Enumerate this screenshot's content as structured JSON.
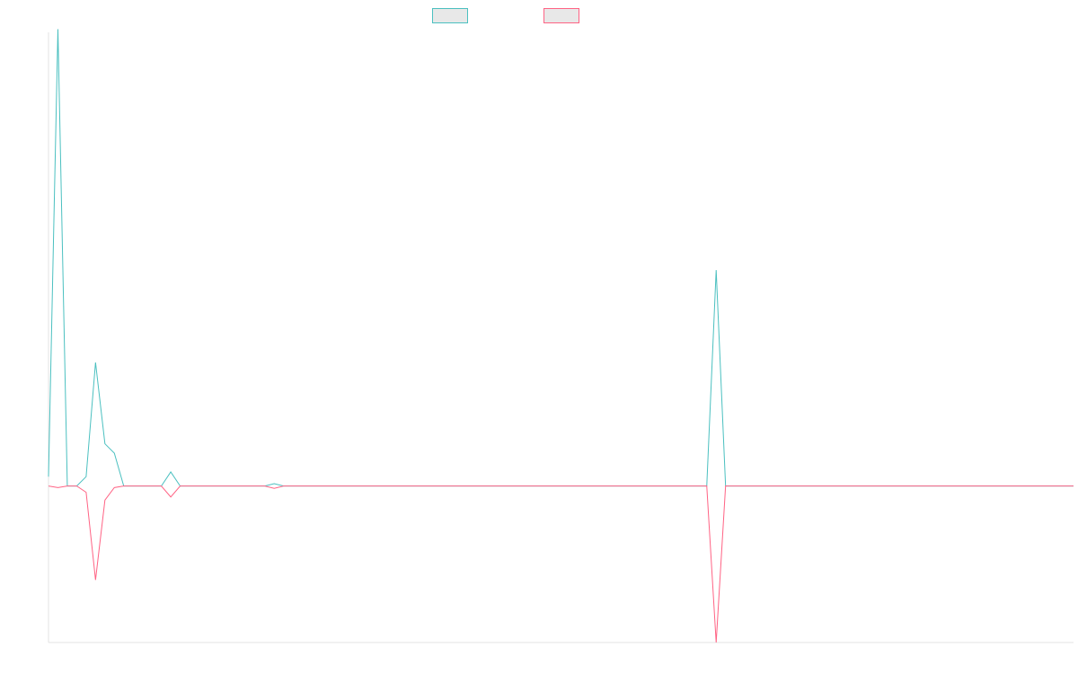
{
  "chart_data": {
    "type": "line",
    "title": "",
    "xlabel": "",
    "ylabel": "",
    "x_count": 110,
    "ylim": [
      -1,
      2.9
    ],
    "grid": false,
    "legend_position": "top-center",
    "series": [
      {
        "color": "#4bc0c0",
        "legend_fill": "#e8e8e8",
        "values": [
          0.06,
          2.92,
          0,
          0,
          0.06,
          0.79,
          0.27,
          0.21,
          0,
          0,
          0,
          0,
          0,
          0.09,
          0,
          0,
          0,
          0,
          0,
          0,
          0,
          0,
          0,
          0,
          0.015,
          0,
          0,
          0,
          0,
          0,
          0,
          0,
          0,
          0,
          0,
          0,
          0,
          0,
          0,
          0,
          0,
          0,
          0,
          0,
          0,
          0,
          0,
          0,
          0,
          0,
          0,
          0,
          0,
          0,
          0,
          0,
          0,
          0,
          0,
          0,
          0,
          0,
          0,
          0,
          0,
          0,
          0,
          0,
          0,
          0,
          0,
          1.38,
          0,
          0,
          0,
          0,
          0,
          0,
          0,
          0,
          0,
          0,
          0,
          0,
          0,
          0,
          0,
          0,
          0,
          0,
          0,
          0,
          0,
          0,
          0,
          0,
          0,
          0,
          0,
          0,
          0,
          0,
          0,
          0,
          0,
          0,
          0,
          0,
          0,
          0
        ]
      },
      {
        "color": "#ff6384",
        "legend_fill": "#e8e8e8",
        "values": [
          0,
          -0.01,
          0,
          0,
          -0.04,
          -0.6,
          -0.09,
          -0.01,
          0,
          0,
          0,
          0,
          0,
          -0.07,
          0,
          0,
          0,
          0,
          0,
          0,
          0,
          0,
          0,
          0,
          -0.015,
          0,
          0,
          0,
          0,
          0,
          0,
          0,
          0,
          0,
          0,
          0,
          0,
          0,
          0,
          0,
          0,
          0,
          0,
          0,
          0,
          0,
          0,
          0,
          0,
          0,
          0,
          0,
          0,
          0,
          0,
          0,
          0,
          0,
          0,
          0,
          0,
          0,
          0,
          0,
          0,
          0,
          0,
          0,
          0,
          0,
          0,
          -1.0,
          0,
          0,
          0,
          0,
          0,
          0,
          0,
          0,
          0,
          0,
          0,
          0,
          0,
          0,
          0,
          0,
          0,
          0,
          0,
          0,
          0,
          0,
          0,
          0,
          0,
          0,
          0,
          0,
          0,
          0,
          0,
          0,
          0,
          0,
          0,
          0,
          0,
          0
        ]
      }
    ]
  }
}
